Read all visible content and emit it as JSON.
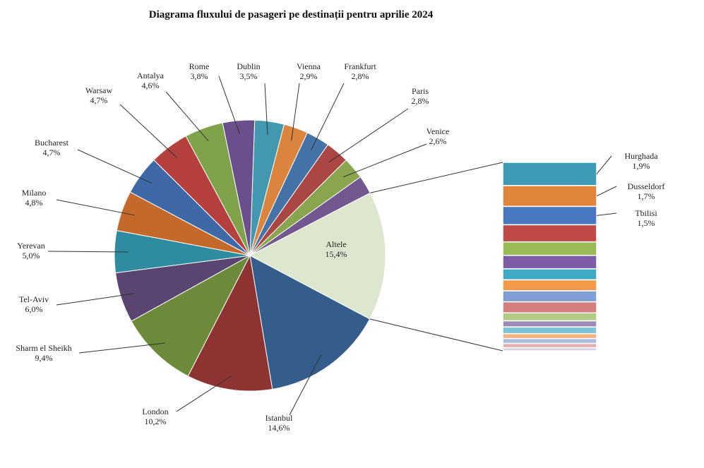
{
  "chart_data": {
    "type": "pie",
    "subtype": "pie-of-bar",
    "title": "Diagrama fluxului  de pasageri pe destinații pentru aprilie 2024",
    "unit": "%",
    "slices": [
      {
        "label": "Dublin",
        "value": 3.5,
        "text": "3,5%",
        "color": "#4198af"
      },
      {
        "label": "Vienna",
        "value": 2.9,
        "text": "2,9%",
        "color": "#db843d"
      },
      {
        "label": "Frankfurt",
        "value": 2.8,
        "text": "2,8%",
        "color": "#4572a7"
      },
      {
        "label": "Paris",
        "value": 2.8,
        "text": "2,8%",
        "color": "#aa4643"
      },
      {
        "label": "Venice",
        "value": 2.6,
        "text": "2,6%",
        "color": "#89a54e"
      },
      {
        "label": "",
        "value": 2.2,
        "text": "",
        "color": "#71588f"
      },
      {
        "label": "Altele",
        "value": 15.4,
        "text": "15,4%",
        "color": "#dde6cf"
      },
      {
        "label": "Istanbul",
        "value": 14.6,
        "text": "14,6%",
        "color": "#345d8c"
      },
      {
        "label": "London",
        "value": 10.2,
        "text": "10,2%",
        "color": "#8d3331"
      },
      {
        "label": "Sharm el Sheikh",
        "value": 9.4,
        "text": "9,4%",
        "color": "#6d8a3b"
      },
      {
        "label": "Tel-Aviv",
        "value": 6.0,
        "text": "6,0%",
        "color": "#5a4472"
      },
      {
        "label": "Yerevan",
        "value": 5.0,
        "text": "5,0%",
        "color": "#2f8b9f"
      },
      {
        "label": "Milano",
        "value": 4.8,
        "text": "4,8%",
        "color": "#c3692b"
      },
      {
        "label": "Bucharest",
        "value": 4.7,
        "text": "4,7%",
        "color": "#3e69a6"
      },
      {
        "label": "Warsaw",
        "value": 4.7,
        "text": "4,7%",
        "color": "#b4413d"
      },
      {
        "label": "Antalya",
        "value": 4.6,
        "text": "4,6%",
        "color": "#7fa24a"
      },
      {
        "label": "Rome",
        "value": 3.8,
        "text": "3,8%",
        "color": "#6a4f8d"
      }
    ],
    "bar_of_other": {
      "total_label": "Altele",
      "segments": [
        {
          "label": "Hurghada",
          "value": 1.9,
          "text": "1,9%",
          "color": "#3d9bb5"
        },
        {
          "label": "Dusseldorf",
          "value": 1.7,
          "text": "1,7%",
          "color": "#e0843a"
        },
        {
          "label": "Tbilisi",
          "value": 1.5,
          "text": "1,5%",
          "color": "#4878c0"
        },
        {
          "label": "",
          "value": 1.4,
          "text": "",
          "color": "#c04a48"
        },
        {
          "label": "",
          "value": 1.1,
          "text": "",
          "color": "#99bb55"
        },
        {
          "label": "",
          "value": 1.1,
          "text": "",
          "color": "#7d5ea6"
        },
        {
          "label": "",
          "value": 0.9,
          "text": "",
          "color": "#40a9c6"
        },
        {
          "label": "",
          "value": 0.9,
          "text": "",
          "color": "#f39a48"
        },
        {
          "label": "",
          "value": 0.9,
          "text": "",
          "color": "#7f9ed3"
        },
        {
          "label": "",
          "value": 0.9,
          "text": "",
          "color": "#d27f7d"
        },
        {
          "label": "",
          "value": 0.65,
          "text": "",
          "color": "#b2cc85"
        },
        {
          "label": "",
          "value": 0.5,
          "text": "",
          "color": "#9e8ab9"
        },
        {
          "label": "",
          "value": 0.55,
          "text": "",
          "color": "#7fc3d6"
        },
        {
          "label": "",
          "value": 0.4,
          "text": "",
          "color": "#f5b27d"
        },
        {
          "label": "",
          "value": 0.4,
          "text": "",
          "color": "#a9bce0"
        },
        {
          "label": "",
          "value": 0.35,
          "text": "",
          "color": "#e0b0ae"
        },
        {
          "label": "",
          "value": 0.25,
          "text": "",
          "color": "#d6d0e2"
        }
      ]
    }
  }
}
